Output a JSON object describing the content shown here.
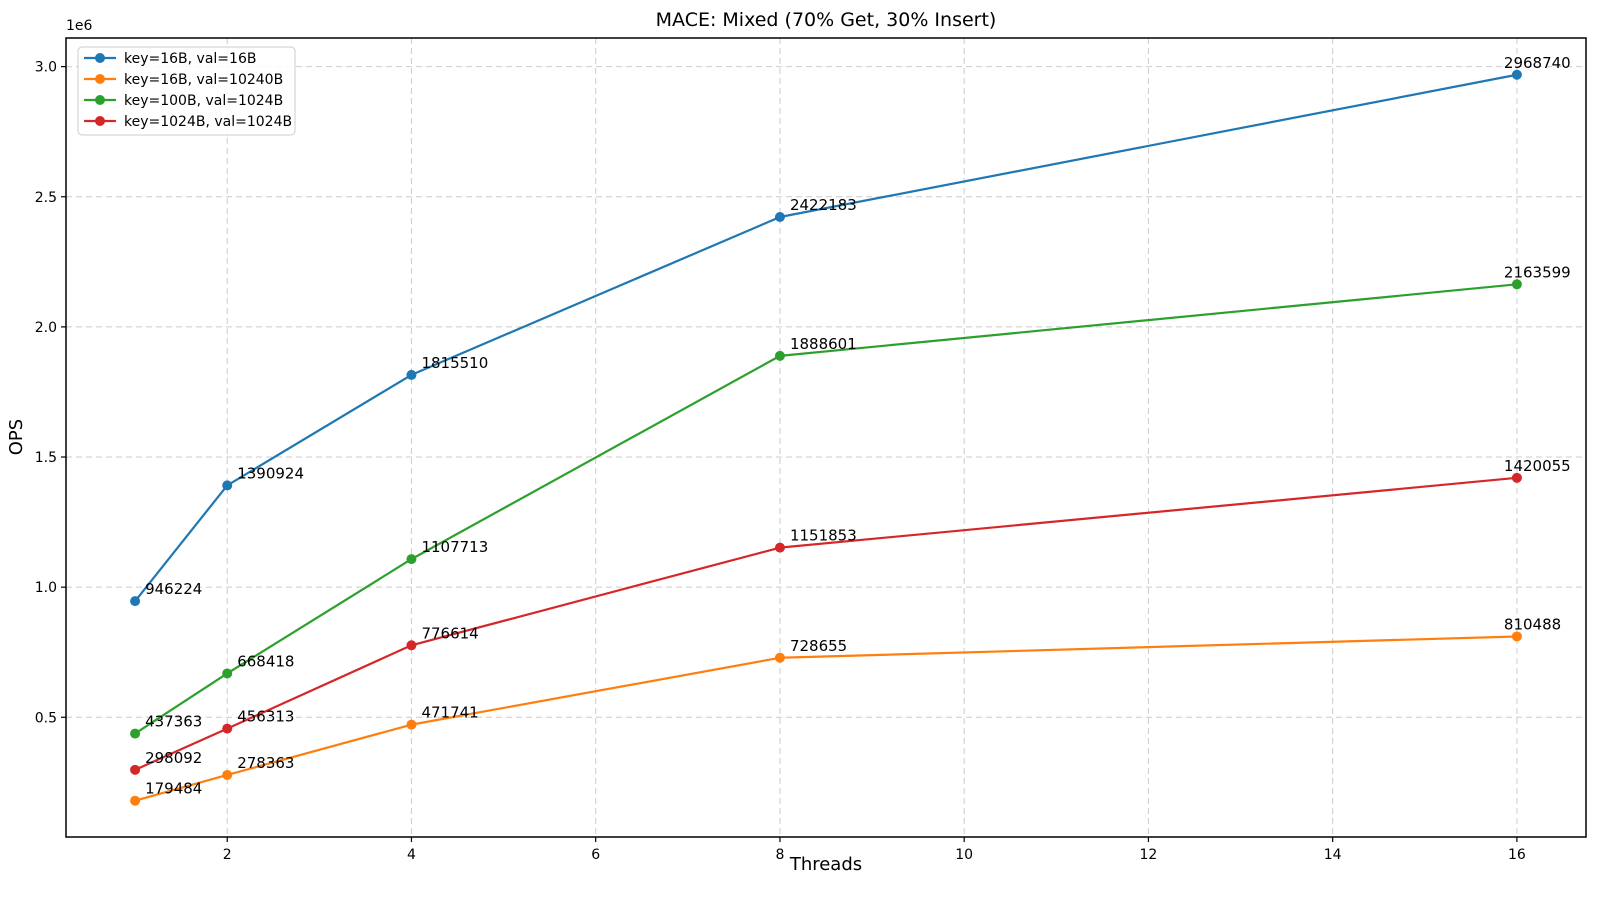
{
  "chart_data": {
    "type": "line",
    "title": "MACE: Mixed (70% Get, 30% Insert)",
    "xlabel": "Threads",
    "ylabel": "OPS",
    "y_axis_offset_text": "1e6",
    "x": [
      1,
      2,
      4,
      8,
      16
    ],
    "series": [
      {
        "name": "key=16B, val=16B",
        "color": "#1f77b4",
        "values": [
          946224,
          1390924,
          1815510,
          2422183,
          2968740
        ]
      },
      {
        "name": "key=16B, val=10240B",
        "color": "#ff7f0e",
        "values": [
          179484,
          278363,
          471741,
          728655,
          810488
        ]
      },
      {
        "name": "key=100B, val=1024B",
        "color": "#2ca02c",
        "values": [
          437363,
          668418,
          1107713,
          1888601,
          2163599
        ]
      },
      {
        "name": "key=1024B, val=1024B",
        "color": "#d62728",
        "values": [
          298092,
          456313,
          776614,
          1151853,
          1420055
        ]
      }
    ],
    "point_labels_visible": true,
    "xlim": [
      0.25,
      16.75
    ],
    "ylim": [
      40000,
      3110000
    ],
    "xticks": [
      2,
      4,
      6,
      8,
      10,
      12,
      14,
      16
    ],
    "xtick_labels": [
      "2",
      "4",
      "6",
      "8",
      "10",
      "12",
      "14",
      "16"
    ],
    "yticks": [
      500000,
      1000000,
      1500000,
      2000000,
      2500000,
      3000000
    ],
    "ytick_labels": [
      "0.5",
      "1.0",
      "1.5",
      "2.0",
      "2.5",
      "3.0"
    ],
    "grid": true,
    "grid_style": "dashed",
    "grid_color": "#cccccc",
    "spine_color": "#000000",
    "background_color": "#ffffff",
    "legend_position": "upper left",
    "marker": "circle"
  }
}
